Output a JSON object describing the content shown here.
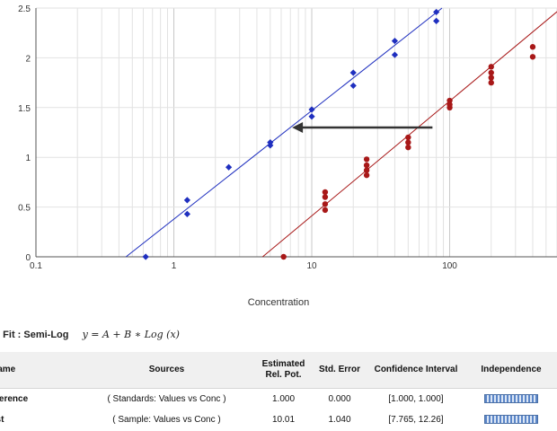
{
  "chart_data": {
    "type": "scatter",
    "xscale": "log",
    "xlim": [
      0.1,
      600
    ],
    "ylim": [
      0,
      2.5
    ],
    "xlabel": "Concentration",
    "ylabel": "",
    "x_ticks": [
      "0.1",
      "1",
      "10",
      "100"
    ],
    "y_ticks": [
      "0",
      "0.5",
      "1",
      "1.5",
      "2",
      "2.5"
    ],
    "grid": true,
    "series": [
      {
        "color": "#1f2fbf",
        "marker": "diamond",
        "points": [
          [
            0.625,
            0.0
          ],
          [
            1.25,
            0.43
          ],
          [
            1.25,
            0.57
          ],
          [
            2.5,
            0.9
          ],
          [
            5,
            1.12
          ],
          [
            5,
            1.15
          ],
          [
            10,
            1.41
          ],
          [
            10,
            1.48
          ],
          [
            20,
            1.72
          ],
          [
            20,
            1.85
          ],
          [
            40,
            2.03
          ],
          [
            40,
            2.17
          ],
          [
            80,
            2.37
          ],
          [
            80,
            2.46
          ]
        ],
        "fit": [
          [
            0.45,
            0.0
          ],
          [
            88,
            2.5
          ]
        ]
      },
      {
        "color": "#a81818",
        "marker": "circle",
        "points": [
          [
            6.25,
            0.0
          ],
          [
            12.5,
            0.47
          ],
          [
            12.5,
            0.53
          ],
          [
            12.5,
            0.6
          ],
          [
            12.5,
            0.65
          ],
          [
            25,
            0.82
          ],
          [
            25,
            0.87
          ],
          [
            25,
            0.92
          ],
          [
            25,
            0.98
          ],
          [
            50,
            1.1
          ],
          [
            50,
            1.15
          ],
          [
            50,
            1.2
          ],
          [
            100,
            1.5
          ],
          [
            100,
            1.53
          ],
          [
            100,
            1.57
          ],
          [
            200,
            1.75
          ],
          [
            200,
            1.8
          ],
          [
            200,
            1.85
          ],
          [
            200,
            1.91
          ],
          [
            400,
            2.01
          ],
          [
            400,
            2.11
          ]
        ],
        "fit": [
          [
            4.4,
            0.0
          ],
          [
            620,
            2.48
          ]
        ]
      }
    ],
    "arrow": {
      "from": [
        75,
        1.3
      ],
      "to": [
        7.2,
        1.3
      ],
      "color": "#333333"
    }
  },
  "fit": {
    "label": "e Fit : Semi-Log",
    "equation": "y = A + B ∗ Log (x)"
  },
  "table": {
    "headers": {
      "name": "Name",
      "sources": "Sources",
      "erp_1": "Estimated",
      "erp_2": "Rel. Pot.",
      "stderr": "Std. Error",
      "ci": "Confidence Interval",
      "indep": "Independence"
    },
    "rows": [
      {
        "name": "eference",
        "sources": "( Standards: Values vs Conc )",
        "erp": "1.000",
        "stderr": "0.000",
        "ci": "[1.000, 1.000]"
      },
      {
        "name": "est",
        "sources": "( Sample: Values vs Conc )",
        "erp": "10.01",
        "stderr": "1.040",
        "ci": "[7.765, 12.26]"
      }
    ]
  }
}
